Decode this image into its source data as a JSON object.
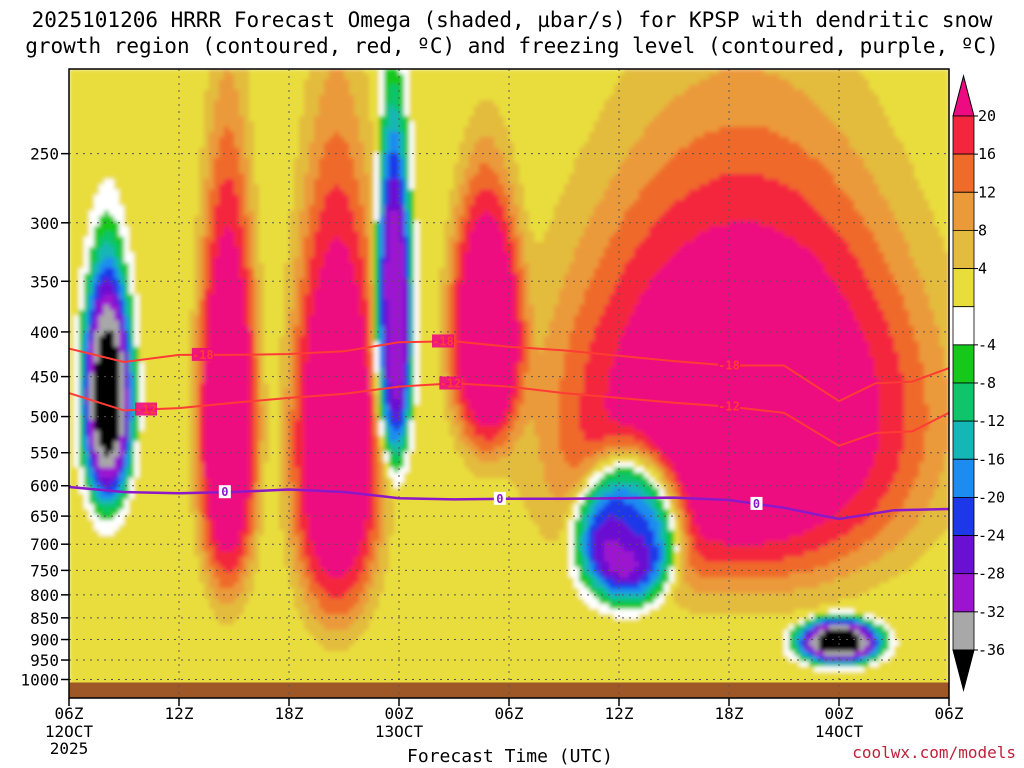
{
  "title_line1": "2025101206 HRRR Forecast Omega (shaded, µbar/s) for KPSP with dendritic snow",
  "title_line2": "growth region (contoured, red, ºC) and freezing level (contoured, purple, ºC)",
  "credit": "coolwx.com/models",
  "chart_data": {
    "type": "heatmap",
    "title": "2025101206 HRRR Forecast Omega (shaded, µbar/s) for KPSP with dendritic snow growth region (contoured, red, ºC) and freezing level (contoured, purple, ºC)",
    "xlabel": "Forecast Time (UTC)",
    "ylabel": "",
    "x_range_hours": [
      0,
      48
    ],
    "y_range_hPa": [
      1050,
      200
    ],
    "y_scale": "log-pressure",
    "grid": true,
    "x_ticks": [
      {
        "hour": 0,
        "label": "06Z",
        "sub1": "12OCT",
        "sub2": "2025"
      },
      {
        "hour": 6,
        "label": "12Z",
        "sub1": "",
        "sub2": ""
      },
      {
        "hour": 12,
        "label": "18Z",
        "sub1": "",
        "sub2": ""
      },
      {
        "hour": 18,
        "label": "00Z",
        "sub1": "13OCT",
        "sub2": ""
      },
      {
        "hour": 24,
        "label": "06Z",
        "sub1": "",
        "sub2": ""
      },
      {
        "hour": 30,
        "label": "12Z",
        "sub1": "",
        "sub2": ""
      },
      {
        "hour": 36,
        "label": "18Z",
        "sub1": "",
        "sub2": ""
      },
      {
        "hour": 42,
        "label": "00Z",
        "sub1": "14OCT",
        "sub2": ""
      },
      {
        "hour": 48,
        "label": "06Z",
        "sub1": "",
        "sub2": ""
      }
    ],
    "y_ticks": [
      250,
      300,
      350,
      400,
      450,
      500,
      550,
      600,
      650,
      700,
      750,
      800,
      850,
      900,
      950,
      1000
    ],
    "colorbar": {
      "labels": [
        "20",
        "16",
        "12",
        "8",
        "4",
        "-4",
        "-8",
        "-12",
        "-16",
        "-20",
        "-24",
        "-28",
        "-32",
        "-36"
      ],
      "bins": [
        {
          "color": "#ee0a80",
          "range": ">20"
        },
        {
          "color": "#f4263e",
          "range": "16 to 20"
        },
        {
          "color": "#ef6b2a",
          "range": "12 to 16"
        },
        {
          "color": "#eb9a3a",
          "range": "8 to 12"
        },
        {
          "color": "#e3bb3e",
          "range": "4 to 8"
        },
        {
          "color": "#e9dd3c",
          "range": "0 to 4"
        },
        {
          "color": "#ffffff",
          "range": "-4 to 0"
        },
        {
          "color": "#16c81a",
          "range": "-8 to -4"
        },
        {
          "color": "#10c46c",
          "range": "-12 to -8"
        },
        {
          "color": "#14b6b6",
          "range": "-16 to -12"
        },
        {
          "color": "#1c8cf0",
          "range": "-20 to -16"
        },
        {
          "color": "#1c38e8",
          "range": "-24 to -20"
        },
        {
          "color": "#6a10d2",
          "range": "-28 to -24"
        },
        {
          "color": "#9c14d0",
          "range": "-32 to -28"
        },
        {
          "color": "#a8a8a8",
          "range": "-36 to -32"
        },
        {
          "color": "#000000",
          "range": "<-36"
        }
      ]
    },
    "omega_features": [
      {
        "name": "rising-core-12OCT",
        "t0": 0.6,
        "t1": 3.6,
        "p_top": 310,
        "p_bot": 640,
        "peak": -40
      },
      {
        "name": "rising-column-13OCT-00Z",
        "t0": 16.6,
        "t1": 18.8,
        "p_top": 205,
        "p_bot": 575,
        "peak": -34
      },
      {
        "name": "rising-core-13OCT-12Z",
        "t0": 27.5,
        "t1": 33.5,
        "p_top": 540,
        "p_bot": 820,
        "peak": -40
      },
      {
        "name": "rising-core-14OCT-00Z",
        "t0": 39.5,
        "t1": 44.5,
        "p_top": 845,
        "p_bot": 965,
        "peak": -40
      },
      {
        "name": "sinking-column-1",
        "t0": 6.8,
        "t1": 10.5,
        "p_top": 200,
        "p_bot": 820,
        "peak": 24
      },
      {
        "name": "sinking-column-2",
        "t0": 11.8,
        "t1": 17.4,
        "p_top": 200,
        "p_bot": 880,
        "peak": 24
      },
      {
        "name": "sinking-column-3",
        "t0": 20.5,
        "t1": 25.0,
        "p_top": 240,
        "p_bot": 560,
        "peak": 24
      },
      {
        "name": "sinking-broad-region",
        "t0": 25.5,
        "t1": 48,
        "p_top": 200,
        "p_bot": 800,
        "peak": 24
      }
    ],
    "dendritic_contours": [
      {
        "label": "-18",
        "t": [
          0,
          3,
          6,
          9,
          12,
          15,
          18,
          21,
          24,
          27,
          30,
          33,
          36,
          39,
          42,
          44,
          46,
          48
        ],
        "p": [
          418,
          433,
          425,
          425,
          424,
          421,
          411,
          410,
          416,
          420,
          426,
          432,
          437,
          437,
          480,
          458,
          456,
          440
        ]
      },
      {
        "label": "-12",
        "t": [
          0,
          3,
          6,
          9,
          12,
          15,
          18,
          21,
          24,
          27,
          30,
          33,
          36,
          39,
          42,
          44,
          46,
          48
        ],
        "p": [
          470,
          492,
          489,
          482,
          476,
          471,
          462,
          458,
          462,
          470,
          476,
          482,
          487,
          495,
          540,
          522,
          520,
          495
        ]
      }
    ],
    "contour_label_positions": [
      {
        "label": "-18",
        "t": 7.3
      },
      {
        "label": "-18",
        "t": 20.4
      },
      {
        "label": "-18",
        "t": 36.0
      },
      {
        "label": "-12",
        "t": 4.2
      },
      {
        "label": "-12",
        "t": 20.8
      },
      {
        "label": "-12",
        "t": 36.0
      }
    ],
    "freezing_level_contour": {
      "label": "0",
      "t": [
        0,
        3,
        6,
        9,
        12,
        15,
        18,
        21,
        24,
        27,
        30,
        33,
        36,
        39,
        42,
        45,
        48
      ],
      "p": [
        602,
        610,
        612,
        610,
        606,
        610,
        620,
        622,
        621,
        621,
        620,
        619,
        623,
        636,
        655,
        640,
        638
      ]
    },
    "freezing_label_positions": [
      8.5,
      23.5,
      37.5
    ]
  }
}
